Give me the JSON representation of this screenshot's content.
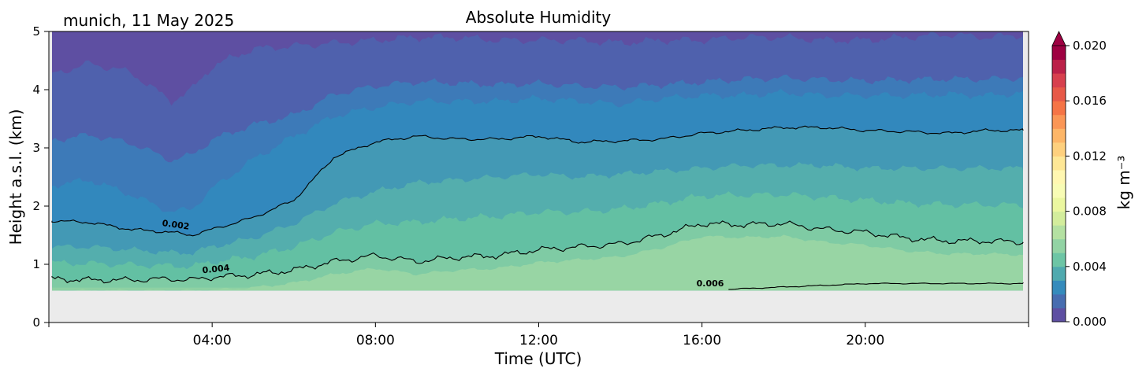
{
  "chart_data": {
    "type": "heatmap",
    "title": "Absolute Humidity",
    "subtitle": "munich, 11 May 2025",
    "xlabel": "Time (UTC)",
    "ylabel": "Height a.s.l. (km)",
    "x_range_hours": [
      0,
      24
    ],
    "ylim": [
      0,
      5
    ],
    "x_ticks": [
      {
        "hour": 4,
        "label": "04:00"
      },
      {
        "hour": 8,
        "label": "08:00"
      },
      {
        "hour": 12,
        "label": "12:00"
      },
      {
        "hour": 16,
        "label": "16:00"
      },
      {
        "hour": 20,
        "label": "20:00"
      }
    ],
    "y_ticks": [
      {
        "value": 0,
        "label": "0"
      },
      {
        "value": 1,
        "label": "1"
      },
      {
        "value": 2,
        "label": "2"
      },
      {
        "value": 3,
        "label": "3"
      },
      {
        "value": 4,
        "label": "4"
      },
      {
        "value": 5,
        "label": "5"
      }
    ],
    "data_bottom_km": 0.55,
    "levels": [
      0.001,
      0.002,
      0.003,
      0.004,
      0.005,
      0.006,
      0.007
    ],
    "band_colors": [
      "#5e4fa2",
      "#4f61ad",
      "#3d7ab8",
      "#3288bd",
      "#4399b5",
      "#54aead",
      "#63c0a3",
      "#7fcba4",
      "#98d5a4"
    ],
    "level_heights_km": {
      "time_hours": [
        0,
        1,
        2,
        3,
        3.5,
        4,
        5,
        6,
        7,
        8,
        9,
        10,
        11,
        12,
        13,
        14,
        15,
        16,
        17,
        18,
        19,
        20,
        21,
        22,
        23,
        24
      ],
      "0.001": [
        4.25,
        4.45,
        4.3,
        3.8,
        4.0,
        4.4,
        4.7,
        4.75,
        4.8,
        4.85,
        4.9,
        4.9,
        4.85,
        4.85,
        4.85,
        4.8,
        4.85,
        4.85,
        4.9,
        4.9,
        4.85,
        4.85,
        4.9,
        4.95,
        4.9,
        4.95
      ],
      "0.002": [
        1.75,
        1.72,
        1.6,
        1.55,
        1.5,
        1.6,
        1.8,
        2.1,
        2.85,
        3.1,
        3.2,
        3.15,
        3.15,
        3.2,
        3.1,
        3.12,
        3.15,
        3.25,
        3.3,
        3.35,
        3.35,
        3.3,
        3.28,
        3.25,
        3.3,
        3.3
      ],
      "0.003": [
        2.35,
        2.45,
        2.2,
        1.9,
        1.95,
        2.3,
        2.8,
        3.2,
        3.55,
        3.7,
        3.8,
        3.8,
        3.8,
        3.85,
        3.8,
        3.75,
        3.85,
        3.9,
        3.9,
        3.95,
        3.9,
        3.9,
        3.9,
        3.92,
        3.9,
        3.95
      ],
      "0.004": [
        0.75,
        0.73,
        0.73,
        0.75,
        0.73,
        0.78,
        0.82,
        0.9,
        1.05,
        1.15,
        1.05,
        1.12,
        1.15,
        1.25,
        1.3,
        1.35,
        1.5,
        1.7,
        1.68,
        1.7,
        1.6,
        1.55,
        1.45,
        1.4,
        1.4,
        1.38
      ],
      "0.005": [
        1.3,
        1.3,
        1.25,
        1.2,
        1.2,
        1.3,
        1.45,
        1.7,
        2.05,
        2.25,
        2.4,
        2.45,
        2.5,
        2.55,
        2.5,
        2.55,
        2.6,
        2.65,
        2.7,
        2.7,
        2.7,
        2.65,
        2.65,
        2.65,
        2.65,
        2.65
      ]
    },
    "contour_labels": [
      {
        "text": "0.002",
        "hour": 3.1,
        "km": 1.63,
        "angle": 8
      },
      {
        "text": "0.004",
        "hour": 4.1,
        "km": 0.87,
        "angle": -6
      },
      {
        "text": "0.006",
        "hour": 16.2,
        "km": 0.62,
        "angle": 0
      }
    ],
    "colorbar": {
      "label": "kg m⁻³",
      "range": [
        0.0,
        0.02
      ],
      "extend": "max",
      "ticks": [
        "0.000",
        "0.004",
        "0.008",
        "0.012",
        "0.016",
        "0.020"
      ],
      "colormap": "Spectral_r"
    },
    "grid": false,
    "legend": "none"
  }
}
